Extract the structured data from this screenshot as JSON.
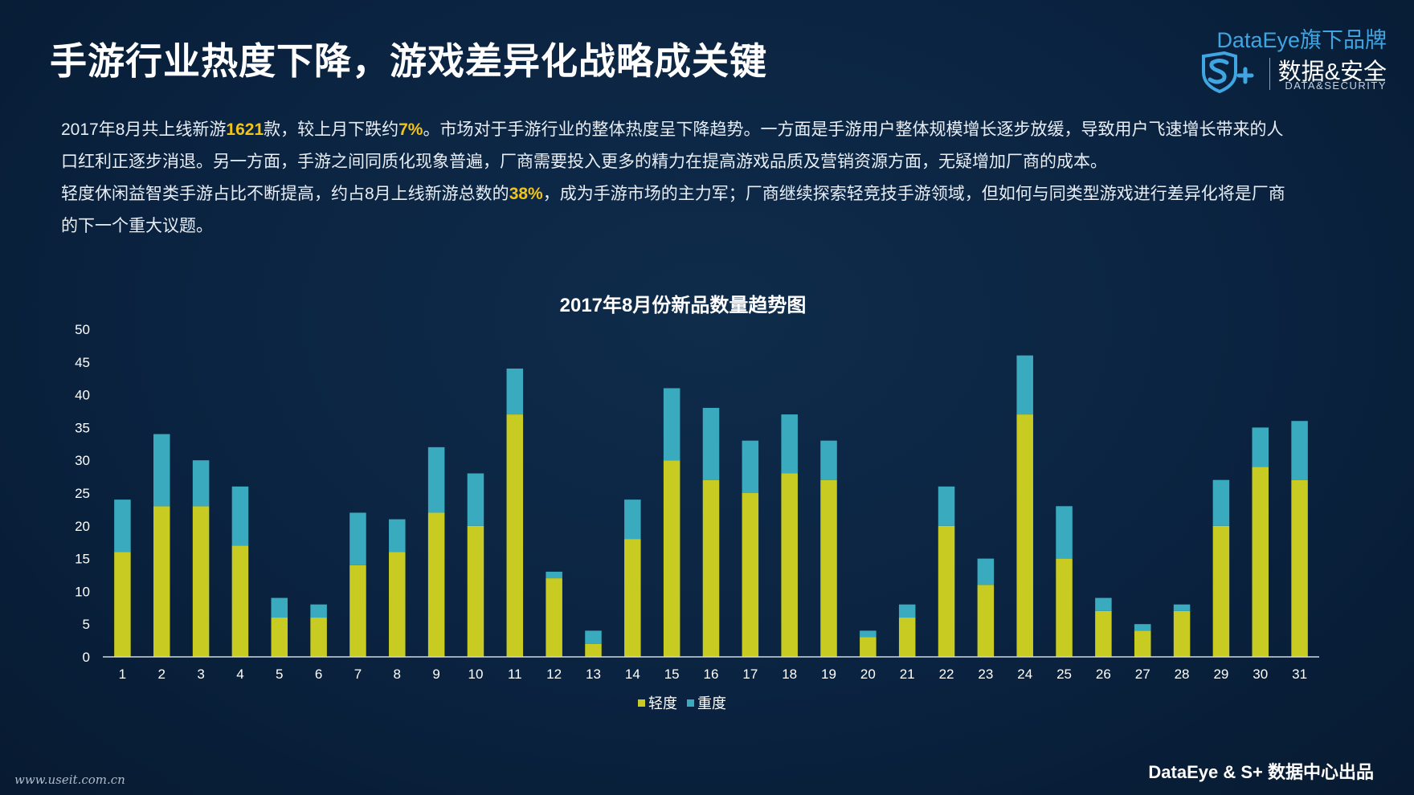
{
  "page": {
    "title": "手游行业热度下降，游戏差异化战略成关键",
    "watermark": "www.useit.com.cn",
    "footer": "DataEye & S+ 数据中心出品"
  },
  "logo": {
    "brand": "DataEye旗下品牌",
    "name": "数据&安全",
    "sub": "DATA&SECURITY",
    "mark": "S+",
    "icon": "shield-s-plus-icon"
  },
  "intro": {
    "p1_a": "2017年8月共上线新游",
    "p1_count": "1621",
    "p1_b": "款，较上月下跌约",
    "p1_drop": "7%",
    "p1_c": "。市场对于手游行业的整体热度呈下降趋势。一方面是手游用户整体规模增长逐步放缓，导致用户飞速增长带来的人口红利正逐步消退。另一方面，手游之间同质化现象普遍，厂商需要投入更多的精力在提高游戏品质及营销资源方面，无疑增加厂商的成本。",
    "p2_a": "轻度休闲益智类手游占比不断提高，约占8月上线新游总数的",
    "p2_share": "38%",
    "p2_b": "，成为手游市场的主力军；厂商继续探索轻竞技手游领域，但如何与同类型游戏进行差异化将是厂商的下一个重大议题。",
    "highlight_color": "#f2c318"
  },
  "chart_data": {
    "type": "bar",
    "stacked": true,
    "title": "2017年8月份新品数量趋势图",
    "xlabel": "",
    "ylabel": "",
    "ylim": [
      0,
      50
    ],
    "yticks": [
      0,
      5,
      10,
      15,
      20,
      25,
      30,
      35,
      40,
      45,
      50
    ],
    "grid": false,
    "legend": "bottom",
    "categories": [
      "1",
      "2",
      "3",
      "4",
      "5",
      "6",
      "7",
      "8",
      "9",
      "10",
      "11",
      "12",
      "13",
      "14",
      "15",
      "16",
      "17",
      "18",
      "19",
      "20",
      "21",
      "22",
      "23",
      "24",
      "25",
      "26",
      "27",
      "28",
      "29",
      "30",
      "31"
    ],
    "series": [
      {
        "name": "轻度",
        "color": "#c8cc22",
        "values": [
          16,
          23,
          23,
          17,
          6,
          6,
          14,
          16,
          22,
          20,
          37,
          12,
          2,
          18,
          30,
          27,
          25,
          28,
          27,
          3,
          6,
          20,
          11,
          37,
          15,
          7,
          4,
          7,
          20,
          29,
          27
        ]
      },
      {
        "name": "重度",
        "color": "#3aabbf",
        "values": [
          8,
          11,
          7,
          9,
          3,
          2,
          8,
          5,
          10,
          8,
          7,
          1,
          2,
          6,
          11,
          11,
          8,
          9,
          6,
          1,
          2,
          6,
          4,
          9,
          8,
          2,
          1,
          1,
          7,
          6,
          9
        ]
      }
    ]
  }
}
